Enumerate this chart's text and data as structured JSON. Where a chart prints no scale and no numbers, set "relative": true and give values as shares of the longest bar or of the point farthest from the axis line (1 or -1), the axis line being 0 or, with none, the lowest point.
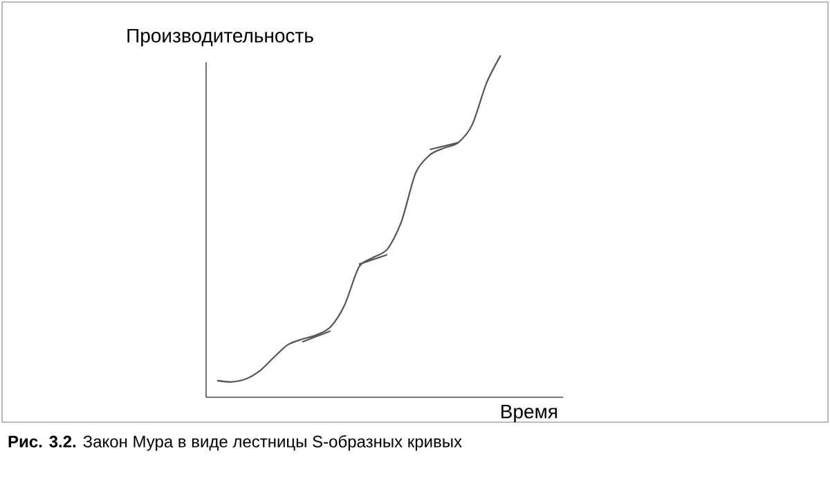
{
  "chart_data": {
    "type": "line",
    "relative": true,
    "xlabel": "Время",
    "ylabel": "Производительность",
    "annotations": [
      "**Рис. 3.2.** Закон Мура в виде лестницы S-образных кривых"
    ],
    "categories": [
      null,
      null,
      null,
      null,
      null,
      null,
      null,
      null,
      null,
      null,
      null,
      null,
      null,
      null,
      null,
      null,
      null,
      null,
      null,
      null,
      null
    ],
    "series": [
      {
        "color": "#555555",
        "values": [
          0.049,
          0.045,
          0.053,
          0.077,
          0.117,
          0.154,
          0.17,
          0.182,
          0.206,
          0.271,
          0.381,
          0.409,
          0.433,
          0.514,
          0.656,
          0.709,
          0.729,
          0.745,
          0.798,
          0.919,
          1
        ]
      },
      {
        "color": "#555555",
        "values": [
          null,
          null,
          null,
          null,
          null,
          null,
          0.162,
          null,
          0.194,
          null,
          null,
          null,
          null,
          null,
          null,
          null,
          null,
          null,
          null,
          null,
          null
        ]
      },
      {
        "color": "#555555",
        "values": [
          null,
          null,
          null,
          null,
          null,
          null,
          null,
          null,
          null,
          null,
          0.389,
          null,
          0.417,
          null,
          null,
          null,
          null,
          null,
          null,
          null,
          null
        ]
      },
      {
        "color": "#555555",
        "values": [
          null,
          null,
          null,
          null,
          null,
          null,
          null,
          null,
          null,
          null,
          null,
          null,
          null,
          null,
          null,
          0.725,
          null,
          0.745,
          null,
          null,
          null
        ]
      }
    ]
  }
}
